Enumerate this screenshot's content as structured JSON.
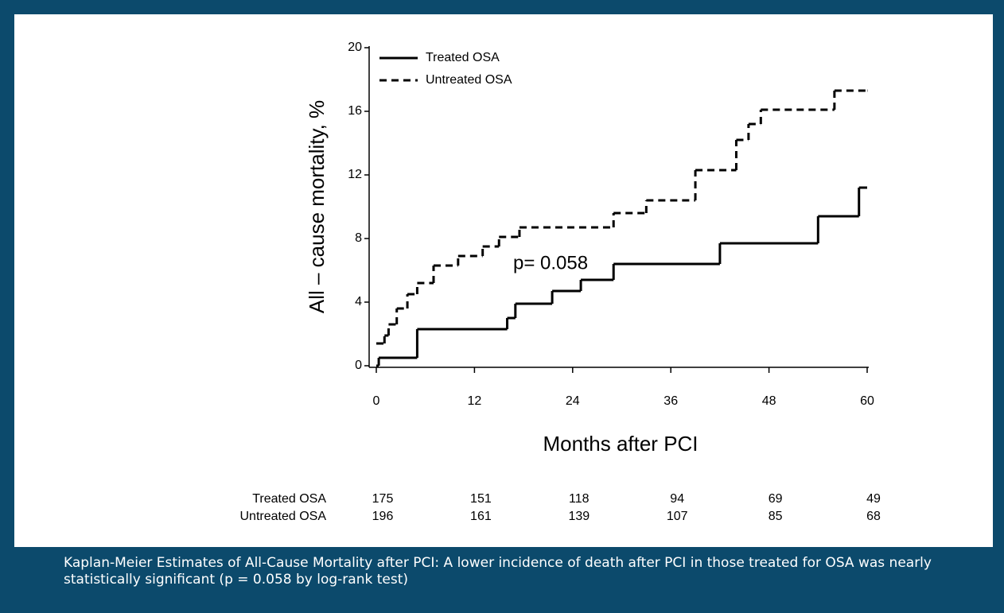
{
  "chart_data": {
    "type": "step",
    "ylabel": "All – cause mortality, %",
    "xlabel": "Months after PCI",
    "annotation": "p= 0.058",
    "xlim": [
      0,
      60
    ],
    "xticks": [
      0,
      12,
      24,
      36,
      48,
      60
    ],
    "ylim": [
      0,
      20
    ],
    "yticks": [
      0,
      4,
      8,
      12,
      16,
      20
    ],
    "legend": "top-left",
    "series": [
      {
        "name": "Treated OSA",
        "color": "#000000",
        "line_style": "solid",
        "x": [
          0,
          0.3,
          5,
          16,
          17,
          21.5,
          25,
          29,
          42,
          54,
          59,
          60
        ],
        "values": [
          0,
          0.5,
          2.3,
          3.0,
          3.9,
          4.7,
          5.4,
          6.4,
          7.7,
          9.4,
          11.2,
          11.2
        ]
      },
      {
        "name": "Untreated OSA",
        "color": "#000000",
        "line_style": "dashed",
        "x": [
          0,
          1,
          1.5,
          2.5,
          3.8,
          5,
          7,
          10,
          13,
          15,
          17.5,
          29,
          33,
          39,
          44,
          45.5,
          47,
          56,
          60
        ],
        "values": [
          1.4,
          1.9,
          2.6,
          3.6,
          4.5,
          5.2,
          6.3,
          6.9,
          7.5,
          8.1,
          8.7,
          9.6,
          10.4,
          12.3,
          14.2,
          15.2,
          16.1,
          17.3,
          17.3
        ]
      }
    ],
    "risk_table": [
      {
        "label": "Treated OSA",
        "values": [
          175,
          151,
          118,
          94,
          69,
          49
        ]
      },
      {
        "label": "Untreated OSA",
        "values": [
          196,
          161,
          139,
          107,
          85,
          68
        ]
      }
    ]
  },
  "caption": "Kaplan-Meier Estimates of All-Cause Mortality after PCI: A lower incidence of death after PCI in those treated for OSA was nearly statistically significant (p = 0.058 by log-rank test)"
}
